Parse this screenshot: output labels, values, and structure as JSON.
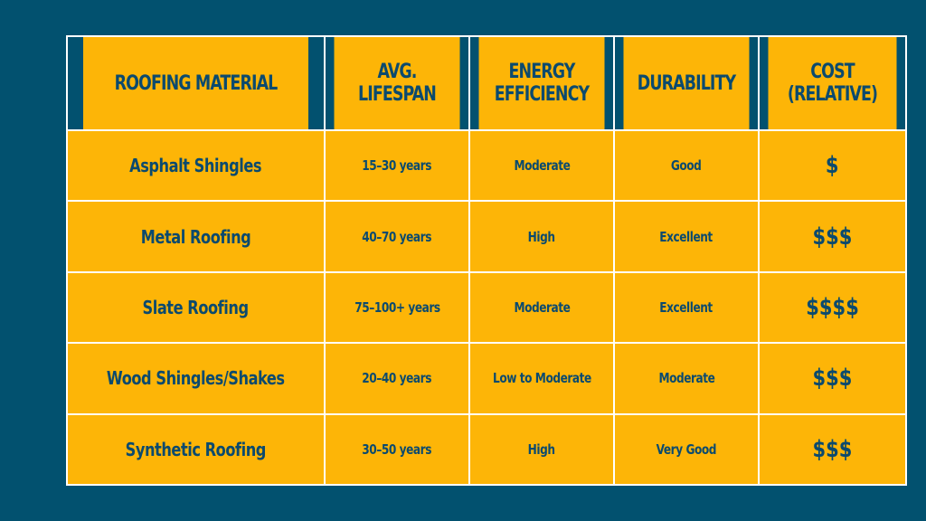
{
  "colors": {
    "background": "#02516f",
    "cell": "#fdb507",
    "text": "#0b4a6e",
    "border": "#ffffff"
  },
  "table": {
    "headers": [
      "ROOFING MATERIAL",
      "AVG. LIFESPAN",
      "ENERGY EFFICIENCY",
      "DURABILITY",
      "COST (RELATIVE)"
    ],
    "rows": [
      [
        "Asphalt Shingles",
        "15–30 years",
        "Moderate",
        "Good",
        "$"
      ],
      [
        "Metal Roofing",
        "40–70 years",
        "High",
        "Excellent",
        "$$$"
      ],
      [
        "Slate Roofing",
        "75–100+ years",
        "Moderate",
        "Excellent",
        "$$$$"
      ],
      [
        "Wood Shingles/Shakes",
        "20–40 years",
        "Low to Moderate",
        "Moderate",
        "$$$"
      ],
      [
        "Synthetic Roofing",
        "30–50 years",
        "High",
        "Very Good",
        "$$$"
      ]
    ]
  }
}
